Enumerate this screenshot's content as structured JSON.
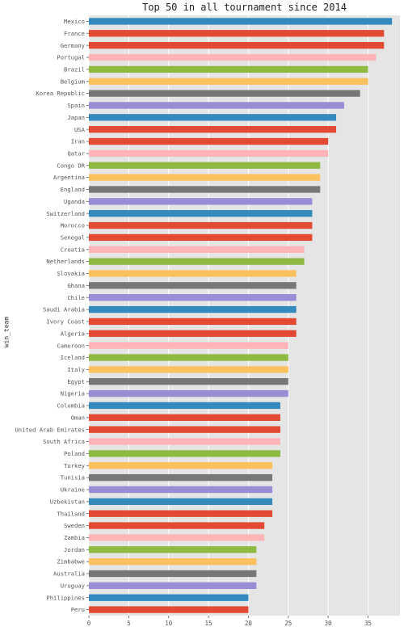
{
  "chart_data": {
    "type": "bar",
    "orientation": "horizontal",
    "title": "Top 50 in all tournament since 2014",
    "xlabel": "",
    "ylabel": "win_team",
    "xlim": [
      0,
      39
    ],
    "xticks": [
      "0",
      "5",
      "10",
      "15",
      "20",
      "25",
      "30",
      "35"
    ],
    "grid": true,
    "style": "ggplot",
    "palette": [
      "#348abd",
      "#e24a33",
      "#e24a33",
      "#ffb5b8",
      "#8eba42",
      "#fbc15e",
      "#777777",
      "#988ed5"
    ],
    "categories": [
      "Mexico",
      "France",
      "Germany",
      "Portugal",
      "Brazil",
      "Belgium",
      "Korea Republic",
      "Spain",
      "Japan",
      "USA",
      "Iran",
      "Qatar",
      "Congo DR",
      "Argentina",
      "England",
      "Uganda",
      "Switzerland",
      "Morocco",
      "Senegal",
      "Croatia",
      "Netherlands",
      "Slovakia",
      "Ghana",
      "Chile",
      "Saudi Arabia",
      "Ivory Coast",
      "Algeria",
      "Cameroon",
      "Iceland",
      "Italy",
      "Egypt",
      "Nigeria",
      "Colombia",
      "Oman",
      "United Arab Emirates",
      "South Africa",
      "Poland",
      "Turkey",
      "Tunisia",
      "Ukraine",
      "Uzbekistan",
      "Thailand",
      "Sweden",
      "Zambia",
      "Jordan",
      "Zimbabwe",
      "Australia",
      "Uruguay",
      "Philippines",
      "Peru"
    ],
    "values": [
      38,
      37,
      37,
      36,
      35,
      35,
      34,
      32,
      31,
      31,
      30,
      30,
      29,
      29,
      29,
      28,
      28,
      28,
      28,
      27,
      27,
      26,
      26,
      26,
      26,
      26,
      26,
      25,
      25,
      25,
      25,
      25,
      24,
      24,
      24,
      24,
      24,
      23,
      23,
      23,
      23,
      23,
      22,
      22,
      21,
      21,
      21,
      21,
      20,
      20
    ],
    "colors": [
      "#348abd",
      "#e24a33",
      "#e24a33",
      "#ffb5b8",
      "#8eba42",
      "#fbc15e",
      "#777777",
      "#988ed5",
      "#348abd",
      "#e24a33",
      "#e24a33",
      "#ffb5b8",
      "#8eba42",
      "#fbc15e",
      "#777777",
      "#988ed5",
      "#348abd",
      "#e24a33",
      "#e24a33",
      "#ffb5b8",
      "#8eba42",
      "#fbc15e",
      "#777777",
      "#988ed5",
      "#348abd",
      "#e24a33",
      "#e24a33",
      "#ffb5b8",
      "#8eba42",
      "#fbc15e",
      "#777777",
      "#988ed5",
      "#348abd",
      "#e24a33",
      "#e24a33",
      "#ffb5b8",
      "#8eba42",
      "#fbc15e",
      "#777777",
      "#988ed5",
      "#348abd",
      "#e24a33",
      "#e24a33",
      "#ffb5b8",
      "#8eba42",
      "#fbc15e",
      "#777777",
      "#988ed5",
      "#348abd",
      "#e24a33"
    ]
  }
}
